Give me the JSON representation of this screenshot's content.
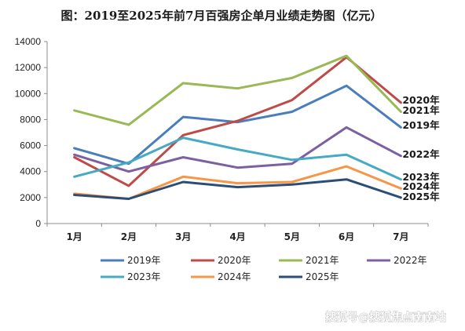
{
  "chart_data": {
    "type": "line",
    "title": "图：2019至2025年前7月百强房企单月业绩走势图（亿元）",
    "categories": [
      "1月",
      "2月",
      "3月",
      "4月",
      "5月",
      "6月",
      "7月"
    ],
    "ylim": [
      0,
      14000
    ],
    "yticks": [
      "0",
      "2000",
      "4000",
      "6000",
      "8000",
      "10000",
      "12000",
      "14000"
    ],
    "grid": false,
    "legend_position": "bottom",
    "series": [
      {
        "name": "2019年",
        "color": "#4a7ebb",
        "values": [
          5800,
          4600,
          8200,
          7800,
          8600,
          10600,
          7400
        ]
      },
      {
        "name": "2020年",
        "color": "#be4b48",
        "values": [
          5100,
          2900,
          6800,
          7900,
          9500,
          12800,
          9300
        ]
      },
      {
        "name": "2021年",
        "color": "#98b954",
        "values": [
          8700,
          7600,
          10800,
          10400,
          11200,
          12900,
          8600
        ]
      },
      {
        "name": "2022年",
        "color": "#7d60a0",
        "values": [
          5300,
          4000,
          5100,
          4300,
          4600,
          7400,
          5200
        ]
      },
      {
        "name": "2023年",
        "color": "#46aac5",
        "values": [
          3600,
          4700,
          6600,
          5700,
          4900,
          5300,
          3400
        ]
      },
      {
        "name": "2024年",
        "color": "#f79646",
        "values": [
          2300,
          1900,
          3600,
          3100,
          3200,
          4400,
          2700
        ]
      },
      {
        "name": "2025年",
        "color": "#2c4d75",
        "values": [
          2200,
          1900,
          3200,
          2800,
          3000,
          3400,
          2000
        ]
      }
    ],
    "end_labels": [
      "2020年",
      "2021年",
      "2019年",
      "2022年",
      "2023年",
      "2024年",
      "2025年"
    ]
  },
  "watermark": "搜狐号@搜狐焦点南南站"
}
